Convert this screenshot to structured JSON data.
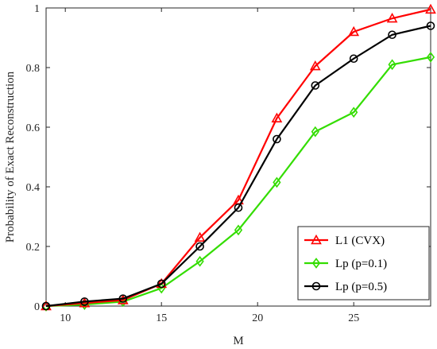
{
  "chart_data": {
    "type": "line",
    "xlabel": "M",
    "ylabel": "Probability of Exact Reconstruction",
    "xlim": [
      9,
      29
    ],
    "ylim": [
      0,
      1
    ],
    "xticks": [
      10,
      15,
      20,
      25
    ],
    "yticks": [
      0,
      0.2,
      0.4,
      0.6,
      0.8,
      1
    ],
    "grid": false,
    "legend_position": "bottom-right",
    "x": [
      9,
      11,
      13,
      15,
      17,
      19,
      21,
      23,
      25,
      27,
      29
    ],
    "series": [
      {
        "name": "L1 (CVX)",
        "color": "#ff0000",
        "marker": "triangle",
        "values": [
          0.0,
          0.01,
          0.02,
          0.075,
          0.23,
          0.355,
          0.63,
          0.805,
          0.92,
          0.965,
          0.995
        ]
      },
      {
        "name": "Lp (p=0.1)",
        "color": "#33dd00",
        "marker": "diamond",
        "values": [
          0.0,
          0.005,
          0.015,
          0.06,
          0.15,
          0.255,
          0.415,
          0.585,
          0.65,
          0.81,
          0.835
        ]
      },
      {
        "name": "Lp (p=0.5)",
        "color": "#000000",
        "marker": "circle",
        "values": [
          0.0,
          0.015,
          0.025,
          0.075,
          0.2,
          0.33,
          0.56,
          0.74,
          0.83,
          0.91,
          0.94
        ]
      }
    ]
  }
}
